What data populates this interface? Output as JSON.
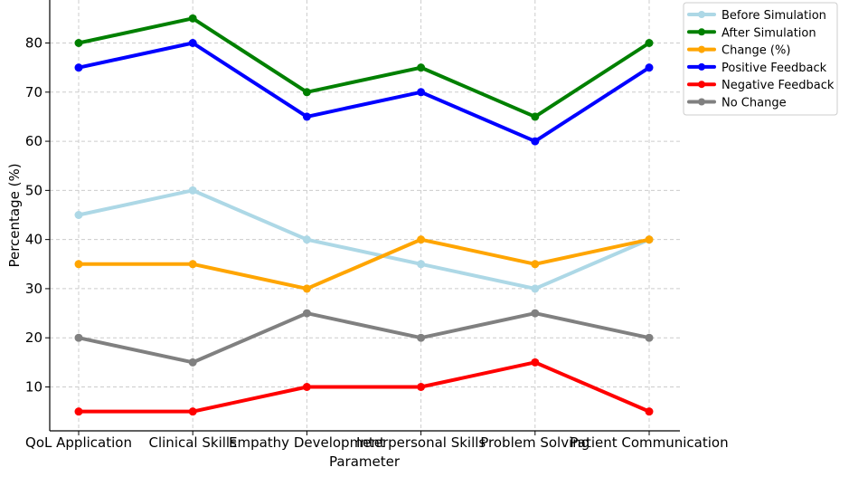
{
  "chart_data": {
    "type": "line",
    "title": "",
    "xlabel": "Parameter",
    "ylabel": "Percentage (%)",
    "categories": [
      "QoL Application",
      "Clinical Skills",
      "Empathy Development",
      "Interpersonal Skills",
      "Problem Solving",
      "Patient Communication"
    ],
    "ylim": [
      2,
      88
    ],
    "yticks": [
      10,
      20,
      30,
      40,
      50,
      60,
      70,
      80
    ],
    "grid": true,
    "legend_position": "top-right",
    "series": [
      {
        "name": "Before Simulation",
        "color": "#add8e6",
        "values": [
          45,
          50,
          40,
          35,
          30,
          40
        ]
      },
      {
        "name": "After Simulation",
        "color": "#008000",
        "values": [
          80,
          85,
          70,
          75,
          65,
          80
        ]
      },
      {
        "name": "Change (%)",
        "color": "#ffa500",
        "values": [
          35,
          35,
          30,
          40,
          35,
          40
        ]
      },
      {
        "name": "Positive Feedback",
        "color": "#0000ff",
        "values": [
          75,
          80,
          65,
          70,
          60,
          75
        ]
      },
      {
        "name": "Negative Feedback",
        "color": "#ff0000",
        "values": [
          5,
          5,
          10,
          10,
          15,
          5
        ]
      },
      {
        "name": "No Change",
        "color": "#808080",
        "values": [
          20,
          15,
          25,
          20,
          25,
          20
        ]
      }
    ]
  }
}
